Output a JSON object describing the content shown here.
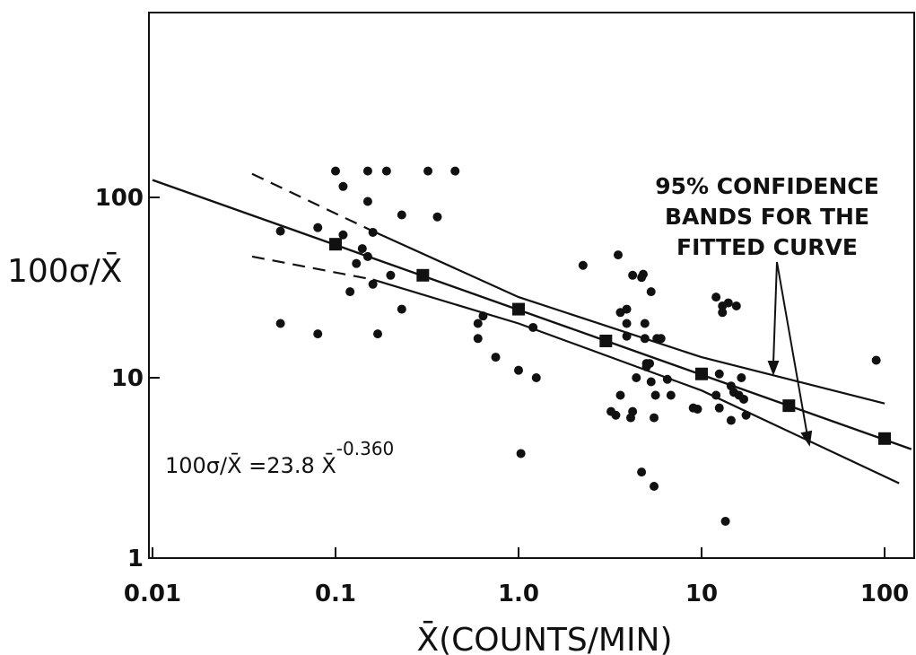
{
  "chart_data": {
    "type": "scatter",
    "x_scale": "log",
    "y_scale": "log",
    "xlim": [
      0.01,
      150
    ],
    "ylim": [
      1,
      1000
    ],
    "grid": false,
    "xlabel": "X̄(COUNTS/MIN)",
    "ylabel": "100σ/X̄",
    "x_ticks": [
      {
        "value": 0.01,
        "label": "0.01"
      },
      {
        "value": 0.1,
        "label": "0.1"
      },
      {
        "value": 1,
        "label": "1.0"
      },
      {
        "value": 10,
        "label": "10"
      },
      {
        "value": 100,
        "label": "100"
      }
    ],
    "y_ticks": [
      {
        "value": 1,
        "label": "1"
      },
      {
        "value": 10,
        "label": "10"
      },
      {
        "value": 100,
        "label": "100"
      }
    ],
    "equation_text": {
      "base": "100σ/X̄ =23.8 X̄",
      "exponent": "-0.360"
    },
    "annotation": {
      "lines": [
        "95% CONFIDENCE",
        "BANDS FOR THE",
        "FITTED CURVE"
      ]
    },
    "fit": {
      "coefficient": 23.8,
      "exponent": -0.36,
      "x_range": [
        0.01,
        140
      ]
    },
    "upper_band": {
      "dashed": [
        [
          0.035,
          135
        ],
        [
          0.16,
          65
        ]
      ],
      "solid": [
        [
          0.16,
          65
        ],
        [
          1,
          28
        ],
        [
          10,
          13
        ],
        [
          100,
          7.2
        ]
      ]
    },
    "lower_band": {
      "dashed": [
        [
          0.035,
          47
        ],
        [
          0.16,
          35
        ]
      ],
      "solid": [
        [
          0.16,
          35
        ],
        [
          1,
          20
        ],
        [
          10,
          8.5
        ],
        [
          120,
          2.6
        ]
      ]
    },
    "binned_means": [
      [
        0.1,
        55
      ],
      [
        0.3,
        37
      ],
      [
        1,
        24
      ],
      [
        3,
        16
      ],
      [
        10,
        10.5
      ],
      [
        30,
        7
      ],
      [
        100,
        4.6
      ]
    ],
    "points": [
      [
        0.05,
        65
      ],
      [
        0.05,
        20
      ],
      [
        0.08,
        68
      ],
      [
        0.08,
        17.5
      ],
      [
        0.1,
        140
      ],
      [
        0.11,
        115
      ],
      [
        0.11,
        62
      ],
      [
        0.12,
        30
      ],
      [
        0.13,
        43
      ],
      [
        0.14,
        52
      ],
      [
        0.15,
        140
      ],
      [
        0.15,
        95
      ],
      [
        0.15,
        47
      ],
      [
        0.16,
        64
      ],
      [
        0.16,
        33
      ],
      [
        0.17,
        17.5
      ],
      [
        0.19,
        140
      ],
      [
        0.2,
        37
      ],
      [
        0.23,
        80
      ],
      [
        0.23,
        24
      ],
      [
        0.32,
        140
      ],
      [
        0.36,
        78
      ],
      [
        0.45,
        140
      ],
      [
        0.6,
        20
      ],
      [
        0.6,
        16.5
      ],
      [
        0.64,
        22
      ],
      [
        0.75,
        13
      ],
      [
        1,
        11
      ],
      [
        1.03,
        3.8
      ],
      [
        1.2,
        19
      ],
      [
        1.25,
        10
      ],
      [
        2.25,
        42
      ],
      [
        3.2,
        6.5
      ],
      [
        3.4,
        6.2
      ],
      [
        3.5,
        48
      ],
      [
        3.6,
        23
      ],
      [
        3.6,
        8
      ],
      [
        3.9,
        24
      ],
      [
        3.9,
        20
      ],
      [
        3.9,
        17
      ],
      [
        4.1,
        6
      ],
      [
        4.2,
        37
      ],
      [
        4.2,
        6.5
      ],
      [
        4.4,
        10
      ],
      [
        4.7,
        36
      ],
      [
        4.7,
        3
      ],
      [
        4.8,
        37.5
      ],
      [
        4.9,
        20
      ],
      [
        4.9,
        16.5
      ],
      [
        5,
        12
      ],
      [
        5,
        11.5
      ],
      [
        5.2,
        12
      ],
      [
        5.3,
        30
      ],
      [
        5.3,
        9.5
      ],
      [
        5.5,
        2.5
      ],
      [
        5.5,
        6
      ],
      [
        5.6,
        8
      ],
      [
        5.7,
        16.5
      ],
      [
        6,
        16.5
      ],
      [
        6.5,
        9.8
      ],
      [
        6.8,
        8
      ],
      [
        9,
        6.8
      ],
      [
        9.5,
        6.7
      ],
      [
        12,
        28
      ],
      [
        12,
        8
      ],
      [
        12.5,
        10.5
      ],
      [
        12.5,
        6.8
      ],
      [
        13,
        23
      ],
      [
        13,
        25
      ],
      [
        13.5,
        1.6
      ],
      [
        14,
        26
      ],
      [
        14.5,
        5.8
      ],
      [
        14.5,
        9
      ],
      [
        15,
        8.3
      ],
      [
        15.5,
        25
      ],
      [
        16,
        8
      ],
      [
        16.5,
        10
      ],
      [
        17,
        7.6
      ],
      [
        17.5,
        6.2
      ],
      [
        90,
        12.5
      ]
    ]
  }
}
